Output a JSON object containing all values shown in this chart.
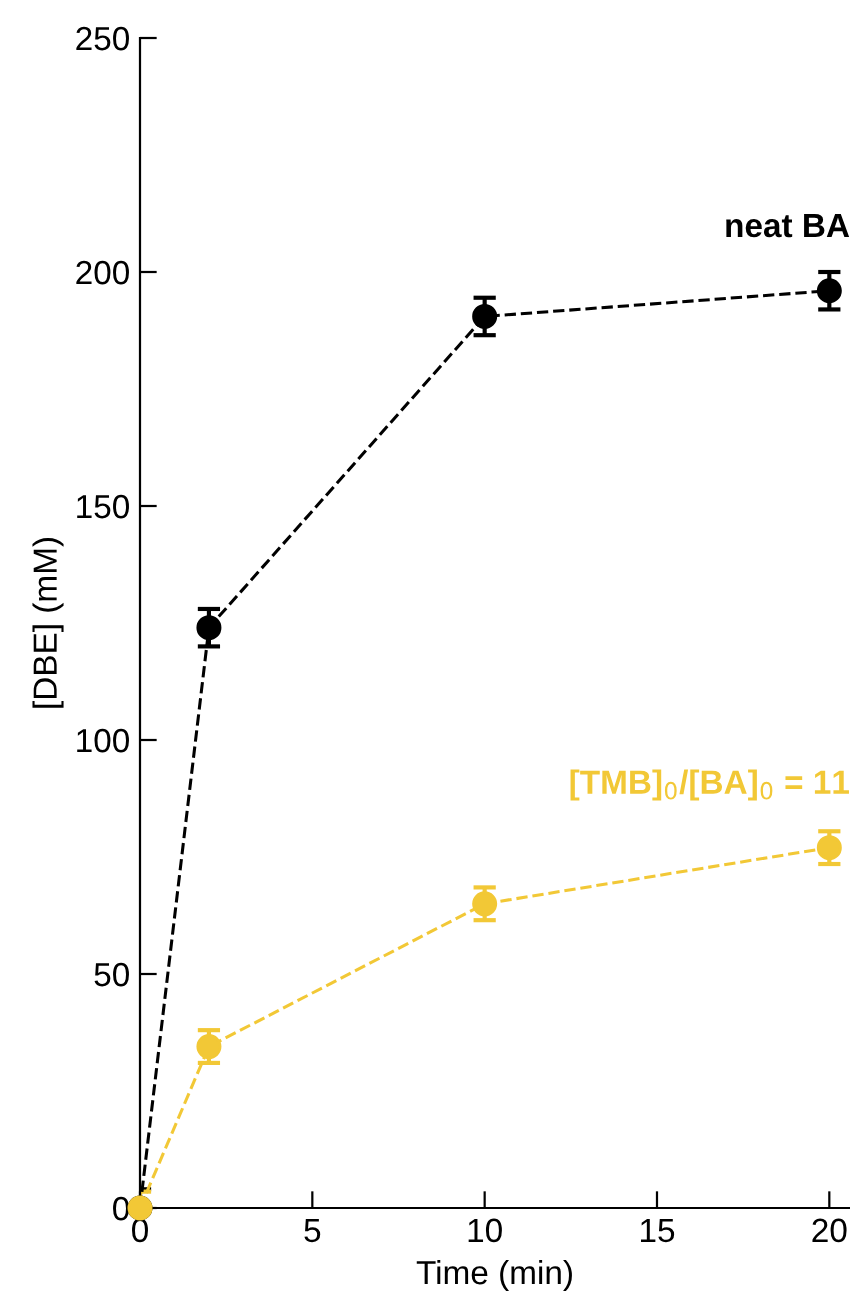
{
  "chart_data": {
    "type": "line",
    "xlabel": "Time (min)",
    "ylabel": "[DBE] (mM)",
    "x": [
      0,
      2,
      10,
      20
    ],
    "xlim": [
      0,
      20.6
    ],
    "xticks": [
      0,
      5,
      10,
      15,
      20
    ],
    "ylim": [
      0,
      250
    ],
    "yticks": [
      0,
      50,
      100,
      150,
      200,
      250
    ],
    "marker": "circle",
    "line_style": "dashed",
    "grid": false,
    "legend": false,
    "series": [
      {
        "name": "neat BA",
        "color": "#000000",
        "values": [
          0,
          124,
          190.5,
          196
        ],
        "errors": [
          4,
          4,
          4,
          4
        ]
      },
      {
        "name": "[TMB]$_{0}$/[BA]$_{0}$ = 11",
        "color": "#f2c836",
        "values": [
          0,
          34.5,
          65,
          77
        ],
        "errors": [
          3.5,
          3.5,
          3.5,
          3.5
        ]
      }
    ]
  }
}
